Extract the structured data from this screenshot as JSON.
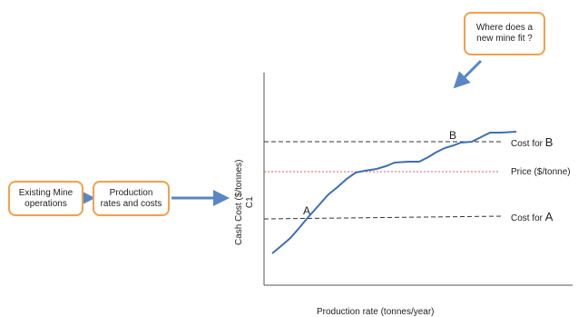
{
  "boxes": {
    "existing": "Existing Mine\noperations",
    "production": "Production\nrates and costs",
    "question": "Where does a\nnew mine fit ?"
  },
  "axes": {
    "ylabel": "Cash Cost ($/tonnes)\nC1",
    "xlabel": "Production rate (tonnes/year)"
  },
  "lines": {
    "cost_b_prefix": "Cost for ",
    "cost_b_letter": "B",
    "price": "Price ($/tonne)",
    "cost_a_prefix": "Cost for ",
    "cost_a_letter": "A"
  },
  "points": {
    "a": "A",
    "b": "B"
  },
  "colors": {
    "box_border": "#f2a04a",
    "arrow": "#5b86c4",
    "curve": "#3f6fb0",
    "price_line": "#cc3333"
  }
}
